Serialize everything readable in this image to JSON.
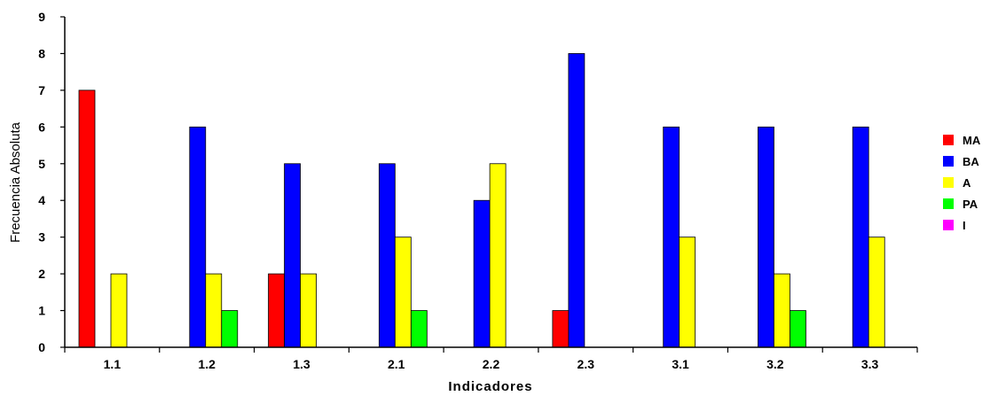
{
  "chart_data": {
    "type": "bar",
    "title": "",
    "xlabel": "Indicadores",
    "ylabel": "Frecuencia Absoluta",
    "ylim": [
      0,
      9
    ],
    "yticks": [
      "0",
      "1",
      "2",
      "3",
      "4",
      "5",
      "6",
      "7",
      "8",
      "9"
    ],
    "categories": [
      "1.1",
      "1.2",
      "1.3",
      "2.1",
      "2.2",
      "2.3",
      "3.1",
      "3.2",
      "3.3"
    ],
    "series": [
      {
        "name": "MA",
        "color": "#ff0000",
        "values": [
          7,
          0,
          2,
          0,
          0,
          1,
          0,
          0,
          0
        ]
      },
      {
        "name": "BA",
        "color": "#0000ff",
        "values": [
          0,
          6,
          5,
          5,
          4,
          8,
          6,
          6,
          6
        ]
      },
      {
        "name": "A",
        "color": "#ffff00",
        "values": [
          2,
          2,
          2,
          3,
          5,
          0,
          3,
          2,
          3
        ]
      },
      {
        "name": "PA",
        "color": "#00ff00",
        "values": [
          0,
          1,
          0,
          1,
          0,
          0,
          0,
          1,
          0
        ]
      },
      {
        "name": "I",
        "color": "#ff00ff",
        "values": [
          0,
          0,
          0,
          0,
          0,
          0,
          0,
          0,
          0
        ]
      }
    ],
    "grid": false,
    "legend_position": "right"
  }
}
